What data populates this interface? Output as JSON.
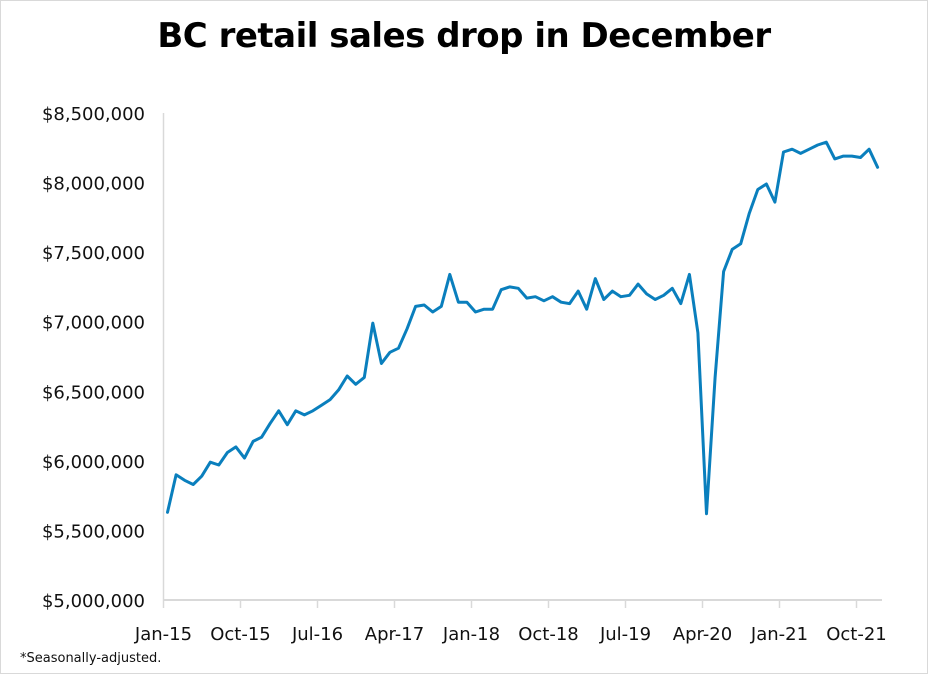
{
  "title": "BC retail sales drop in December",
  "footnote": "*Seasonally-adjusted.",
  "colors": {
    "line": "#0a7fbd",
    "axis": "#d9d9d9",
    "text": "#111111"
  },
  "chart_data": {
    "type": "line",
    "title": "BC retail sales drop in December",
    "xlabel": "",
    "ylabel": "",
    "ylim": [
      5000000,
      8500000
    ],
    "yticks": [
      5000000,
      5500000,
      6000000,
      6500000,
      7000000,
      7500000,
      8000000,
      8500000
    ],
    "ytick_labels": [
      "$5,000,000",
      "$5,500,000",
      "$6,000,000",
      "$6,500,000",
      "$7,000,000",
      "$7,500,000",
      "$8,000,000",
      "$8,500,000"
    ],
    "xtick_labels": [
      "Jan-15",
      "Oct-15",
      "Jul-16",
      "Apr-17",
      "Jan-18",
      "Oct-18",
      "Jul-19",
      "Apr-20",
      "Jan-21",
      "Oct-21"
    ],
    "grid": false,
    "legend": null,
    "annotations": [
      "*Seasonally-adjusted."
    ],
    "x_start": "Jan-15",
    "x_end": "Dec-21",
    "frequency": "monthly",
    "series": [
      {
        "name": "BC retail sales",
        "values": [
          5630000,
          5900000,
          5860000,
          5830000,
          5890000,
          5990000,
          5970000,
          6060000,
          6100000,
          6020000,
          6140000,
          6170000,
          6270000,
          6360000,
          6260000,
          6360000,
          6330000,
          6360000,
          6400000,
          6440000,
          6510000,
          6610000,
          6550000,
          6600000,
          6990000,
          6700000,
          6780000,
          6810000,
          6950000,
          7110000,
          7120000,
          7070000,
          7110000,
          7340000,
          7140000,
          7140000,
          7070000,
          7090000,
          7090000,
          7230000,
          7250000,
          7240000,
          7170000,
          7180000,
          7150000,
          7180000,
          7140000,
          7130000,
          7220000,
          7090000,
          7310000,
          7160000,
          7220000,
          7180000,
          7190000,
          7270000,
          7200000,
          7160000,
          7190000,
          7240000,
          7130000,
          7340000,
          6920000,
          5620000,
          6600000,
          7360000,
          7520000,
          7560000,
          7780000,
          7950000,
          7990000,
          7860000,
          8220000,
          8240000,
          8210000,
          8240000,
          8270000,
          8290000,
          8170000,
          8190000,
          8190000,
          8180000,
          8240000,
          8110000
        ]
      }
    ]
  }
}
